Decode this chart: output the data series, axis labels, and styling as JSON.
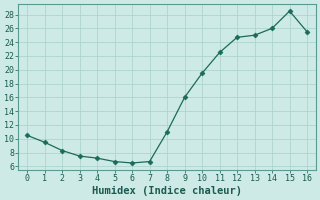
{
  "x": [
    0,
    1,
    2,
    3,
    4,
    5,
    6,
    7,
    8,
    9,
    10,
    11,
    12,
    13,
    14,
    15,
    16
  ],
  "y": [
    10.5,
    9.5,
    8.3,
    7.5,
    7.2,
    6.7,
    6.5,
    6.7,
    11.0,
    16.0,
    19.5,
    22.5,
    24.7,
    25.0,
    26.0,
    28.5,
    25.5
  ],
  "line_color": "#1a6b5a",
  "marker": "D",
  "marker_size": 2.5,
  "bg_color": "#ceeae6",
  "grid_color": "#aed4ce",
  "xlabel": "Humidex (Indice chaleur)",
  "xlim": [
    -0.5,
    16.5
  ],
  "ylim": [
    5.5,
    29.5
  ],
  "xticks": [
    0,
    1,
    2,
    3,
    4,
    5,
    6,
    7,
    8,
    9,
    10,
    11,
    12,
    13,
    14,
    15,
    16
  ],
  "yticks": [
    6,
    8,
    10,
    12,
    14,
    16,
    18,
    20,
    22,
    24,
    26,
    28
  ],
  "tick_fontsize": 6,
  "xlabel_fontsize": 7.5
}
